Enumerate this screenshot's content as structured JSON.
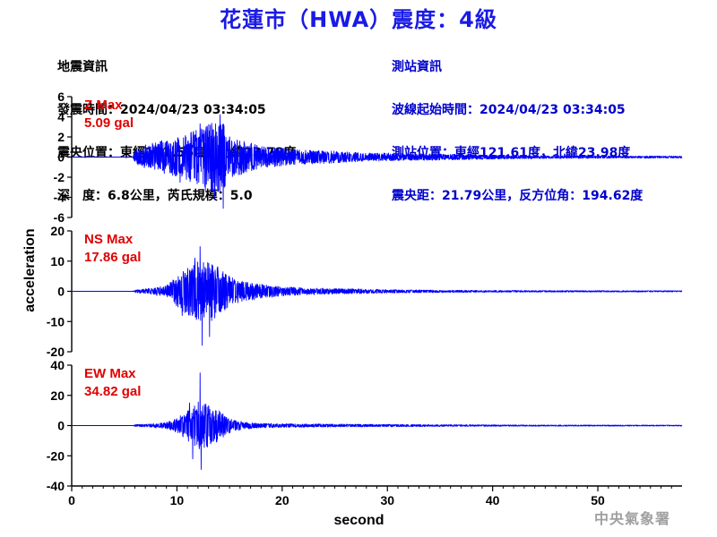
{
  "title": "花蓮市（HWA）震度：4級",
  "event_info": {
    "header": "地震資訊",
    "origin_time": "發震時間：2024/04/23 03:34:05",
    "epicenter": "震央位置：東經121.56度，北緯23.78度",
    "depth_magnitude": "深　度：6.8公里，芮氏規模：5.0"
  },
  "station_info": {
    "header": "測站資訊",
    "wave_start": "波線起始時間：2024/04/23 03:34:05",
    "location": "測站位置：東經121.61度，北緯23.98度",
    "distance_azimuth": "震央距：21.79公里，反方位角：194.62度"
  },
  "credit": "中央氣象署",
  "colors": {
    "trace": "#0000ff",
    "max_label": "#e00000",
    "title": "#1a1ae6",
    "station_text": "#0000cc"
  },
  "chart_data": {
    "type": "line",
    "xlabel": "second",
    "ylabel": "acceleration",
    "xlim": [
      0,
      58
    ],
    "x_ticks": [
      0,
      10,
      20,
      30,
      40,
      50
    ],
    "grid": false,
    "panels": [
      {
        "component": "Z",
        "max_label": "Z Max",
        "max_value": "5.09 gal",
        "ylim": [
          -6,
          6
        ],
        "y_ticks": [
          -6,
          -4,
          -2,
          0,
          2,
          4,
          6
        ],
        "envelope": [
          [
            0,
            0
          ],
          [
            5.8,
            0
          ],
          [
            6,
            0.6
          ],
          [
            7,
            1.2
          ],
          [
            8,
            1.5
          ],
          [
            9,
            1.8
          ],
          [
            10,
            1.9
          ],
          [
            11,
            2.4
          ],
          [
            12,
            2.8
          ],
          [
            13,
            3.4
          ],
          [
            14,
            3.6
          ],
          [
            14.5,
            3.3
          ],
          [
            15,
            2.2
          ],
          [
            16,
            1.8
          ],
          [
            17,
            1.4
          ],
          [
            18,
            1.1
          ],
          [
            20,
            0.9
          ],
          [
            22,
            0.7
          ],
          [
            25,
            0.6
          ],
          [
            28,
            0.4
          ],
          [
            30,
            0.4
          ],
          [
            35,
            0.3
          ],
          [
            40,
            0.2
          ],
          [
            45,
            0.15
          ],
          [
            50,
            0.12
          ],
          [
            58,
            0.1
          ]
        ],
        "peaks": [
          {
            "x": 14.1,
            "y": 4.2
          },
          {
            "x": 14.4,
            "y": -5.09
          },
          {
            "x": 13.6,
            "y": -4.2
          },
          {
            "x": 12.7,
            "y": -3.3
          },
          {
            "x": 12.2,
            "y": 3.3
          },
          {
            "x": 10.3,
            "y": -2.5
          }
        ]
      },
      {
        "component": "NS",
        "max_label": "NS Max",
        "max_value": "17.86 gal",
        "ylim": [
          -20,
          20
        ],
        "y_ticks": [
          -20,
          -10,
          0,
          10,
          20
        ],
        "envelope": [
          [
            0,
            0
          ],
          [
            5.8,
            0
          ],
          [
            6,
            0.4
          ],
          [
            7,
            0.8
          ],
          [
            8,
            1.3
          ],
          [
            9,
            2
          ],
          [
            10,
            5
          ],
          [
            11,
            8
          ],
          [
            12,
            10
          ],
          [
            13,
            10.5
          ],
          [
            14,
            8
          ],
          [
            15,
            5
          ],
          [
            16,
            3.5
          ],
          [
            17,
            3
          ],
          [
            18,
            2.5
          ],
          [
            20,
            1.5
          ],
          [
            22,
            1.2
          ],
          [
            25,
            0.9
          ],
          [
            30,
            0.6
          ],
          [
            35,
            0.4
          ],
          [
            40,
            0.3
          ],
          [
            45,
            0.25
          ],
          [
            58,
            0.2
          ]
        ],
        "peaks": [
          {
            "x": 12.2,
            "y": 14.8
          },
          {
            "x": 12.4,
            "y": -17.86
          },
          {
            "x": 13.1,
            "y": -15
          },
          {
            "x": 11.7,
            "y": 11
          },
          {
            "x": 10.5,
            "y": -8
          }
        ]
      },
      {
        "component": "EW",
        "max_label": "EW Max",
        "max_value": "34.82 gal",
        "ylim": [
          -40,
          40
        ],
        "y_ticks": [
          -40,
          -20,
          0,
          20,
          40
        ],
        "envelope": [
          [
            0,
            0
          ],
          [
            5.8,
            0
          ],
          [
            6,
            0.6
          ],
          [
            7,
            1
          ],
          [
            8,
            1.5
          ],
          [
            9,
            2
          ],
          [
            10,
            5
          ],
          [
            11,
            10
          ],
          [
            12,
            16
          ],
          [
            13,
            14
          ],
          [
            14,
            10
          ],
          [
            15,
            5
          ],
          [
            16,
            3
          ],
          [
            17,
            2
          ],
          [
            18,
            1.5
          ],
          [
            20,
            1.2
          ],
          [
            25,
            1
          ],
          [
            30,
            0.8
          ],
          [
            35,
            0.6
          ],
          [
            40,
            0.5
          ],
          [
            45,
            0.4
          ],
          [
            58,
            0.3
          ]
        ],
        "peaks": [
          {
            "x": 12.2,
            "y": 34.82
          },
          {
            "x": 12.3,
            "y": -29
          },
          {
            "x": 11.5,
            "y": -22
          },
          {
            "x": 11.2,
            "y": 15
          },
          {
            "x": 13.2,
            "y": -12
          }
        ]
      }
    ]
  }
}
